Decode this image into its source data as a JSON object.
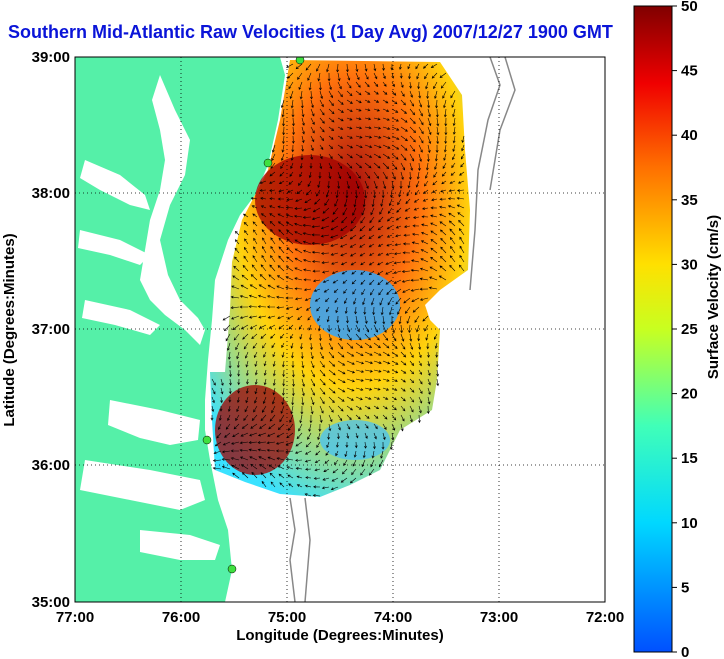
{
  "title": "Southern Mid-Atlantic Raw Velocities (1 Day Avg) 2007/12/27 1900 GMT",
  "x_axis": {
    "label": "Longitude (Degrees:Minutes)",
    "ticks": [
      "77:00",
      "76:00",
      "75:00",
      "74:00",
      "73:00",
      "72:00"
    ]
  },
  "y_axis": {
    "label": "Latitude (Degrees:Minutes)",
    "ticks": [
      "39:00",
      "38:00",
      "37:00",
      "36:00",
      "35:00"
    ]
  },
  "colorbar": {
    "label": "Surface Velocity (cm/s)",
    "min": 0,
    "max": 50,
    "ticks": [
      "0",
      "5",
      "10",
      "15",
      "20",
      "25",
      "30",
      "35",
      "40",
      "45",
      "50"
    ]
  },
  "colors": {
    "land": "#55f0a8",
    "water": "#ffffff",
    "title": "#0a14d8"
  }
}
